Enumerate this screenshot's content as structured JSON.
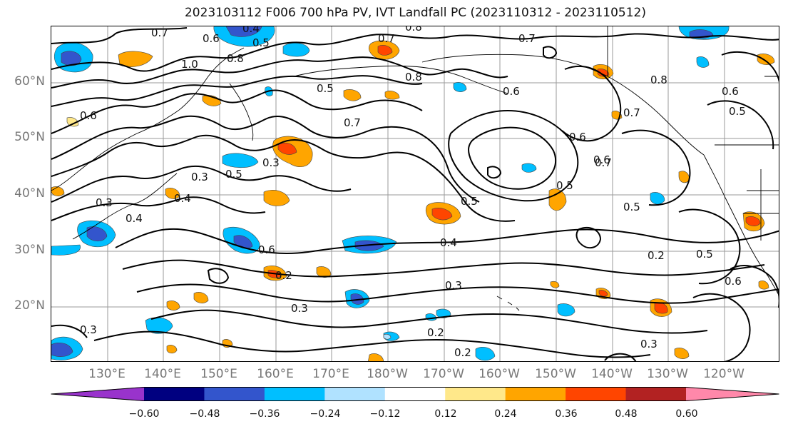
{
  "title": "2023103112 F006 700 hPa PV, IVT Landfall PC (2023110312 - 2023110512)",
  "map": {
    "lat_labels": [
      "60°N",
      "50°N",
      "40°N",
      "30°N",
      "20°N"
    ],
    "lon_labels": [
      "130°E",
      "140°E",
      "150°E",
      "160°E",
      "170°E",
      "180°W",
      "170°W",
      "160°W",
      "150°W",
      "140°W",
      "130°W",
      "120°W"
    ],
    "contour_labels": [
      "0.7",
      "0.4",
      "0.5",
      "0.6",
      "0.8",
      "1.0",
      "0.8",
      "0.7",
      "0.8",
      "0.7",
      "0.5",
      "0.6",
      "0.7",
      "0.6",
      "0.8",
      "0.6",
      "0.7",
      "0.5",
      "0.3",
      "0.5",
      "0.3",
      "0.4",
      "0.3",
      "0.4",
      "0.6",
      "0.5",
      "0.4",
      "0.2",
      "0.3",
      "0.3",
      "0.2",
      "0.2",
      "0.5",
      "0.2",
      "0.6",
      "0.3",
      "0.6",
      "0.7",
      "0.5",
      "0.6",
      "0.5",
      "0.3"
    ]
  },
  "colorbar": {
    "colors": [
      "#9933cc",
      "#000080",
      "#3355cc",
      "#00bfff",
      "#b0e2ff",
      "#ffffff",
      "#ffe88a",
      "#ffa500",
      "#ff4500",
      "#b22222",
      "#ff88aa"
    ],
    "ticks": [
      "−0.60",
      "−0.48",
      "−0.36",
      "−0.24",
      "−0.12",
      "0.12",
      "0.24",
      "0.36",
      "0.48",
      "0.60"
    ]
  }
}
